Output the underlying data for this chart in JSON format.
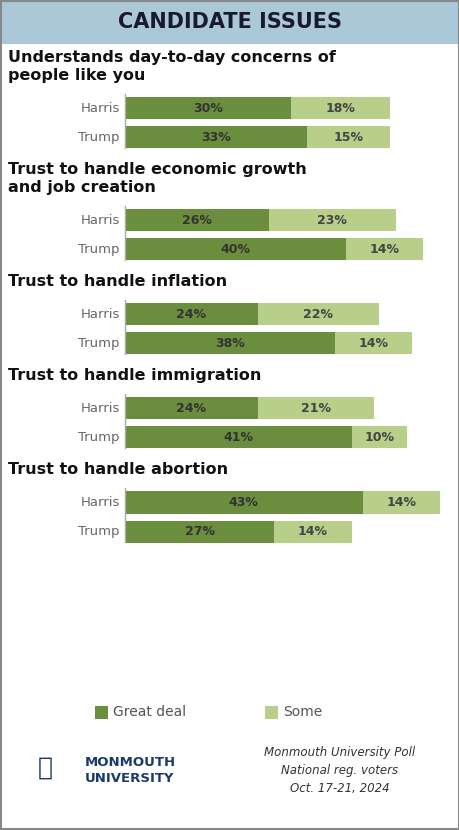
{
  "title": "CANDIDATE ISSUES",
  "title_bg_color": "#aac8d8",
  "bg_color": "#ffffff",
  "border_color": "#666666",
  "color_great_deal": "#6b8e3e",
  "color_some": "#b8cf8a",
  "color_gd_label_bg": "#d8e8b8",
  "color_some_label_bg": "#e4efd4",
  "sections": [
    {
      "title": "Understands day-to-day concerns of\npeople like you",
      "rows": [
        {
          "label": "Harris",
          "great_deal": 30,
          "some": 18
        },
        {
          "label": "Trump",
          "great_deal": 33,
          "some": 15
        }
      ]
    },
    {
      "title": "Trust to handle economic growth\nand job creation",
      "rows": [
        {
          "label": "Harris",
          "great_deal": 26,
          "some": 23
        },
        {
          "label": "Trump",
          "great_deal": 40,
          "some": 14
        }
      ]
    },
    {
      "title": "Trust to handle inflation",
      "rows": [
        {
          "label": "Harris",
          "great_deal": 24,
          "some": 22
        },
        {
          "label": "Trump",
          "great_deal": 38,
          "some": 14
        }
      ]
    },
    {
      "title": "Trust to handle immigration",
      "rows": [
        {
          "label": "Harris",
          "great_deal": 24,
          "some": 21
        },
        {
          "label": "Trump",
          "great_deal": 41,
          "some": 10
        }
      ]
    },
    {
      "title": "Trust to handle abortion",
      "rows": [
        {
          "label": "Harris",
          "great_deal": 43,
          "some": 14
        },
        {
          "label": "Trump",
          "great_deal": 27,
          "some": 14
        }
      ]
    }
  ],
  "legend_great_deal": "Great deal",
  "legend_some": "Some",
  "footer_right": "Monmouth University Poll\nNational reg. voters\nOct. 17-21, 2024",
  "max_bar_value": 57,
  "label_fontsize": 9.5,
  "value_fontsize": 9,
  "section_title_fontsize": 11.5,
  "chart_title_fontsize": 15
}
